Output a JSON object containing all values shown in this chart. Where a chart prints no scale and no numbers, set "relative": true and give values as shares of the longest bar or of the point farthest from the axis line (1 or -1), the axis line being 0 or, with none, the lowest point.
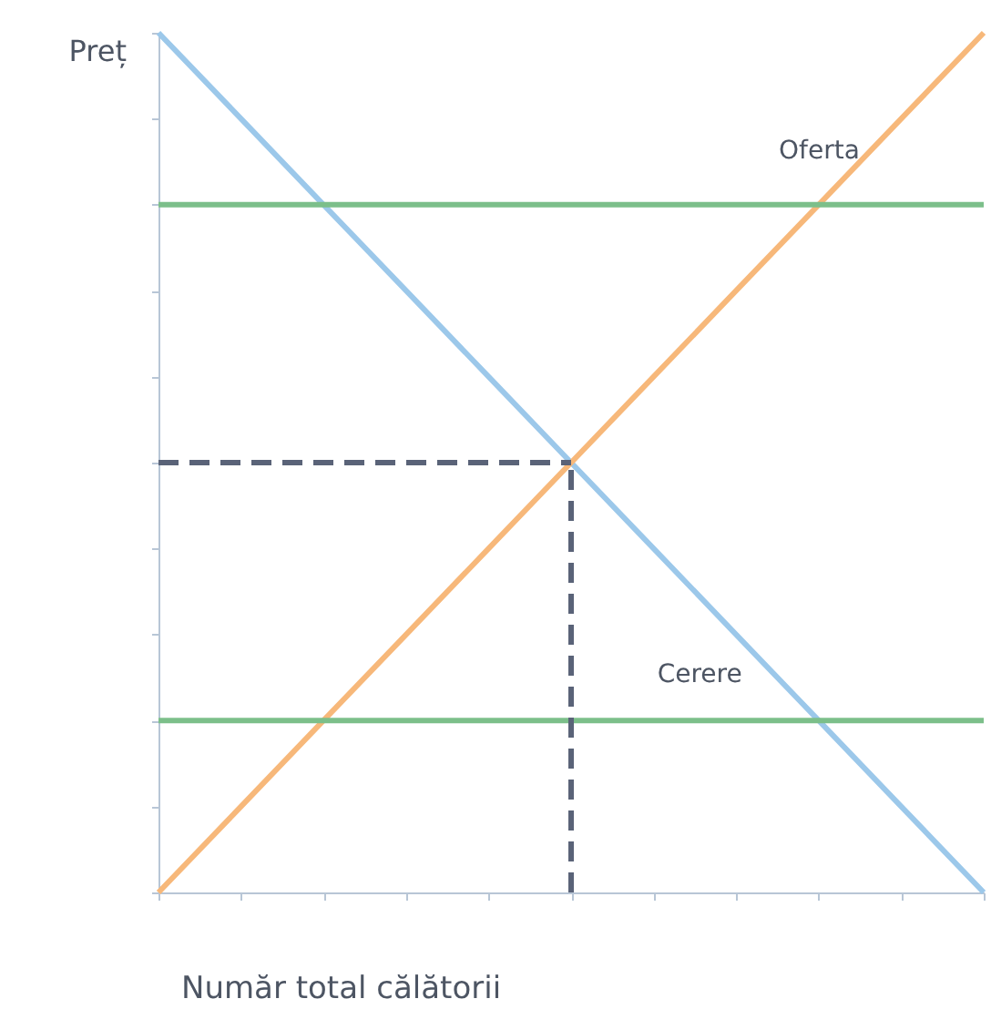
{
  "chart_data": {
    "type": "line",
    "relative": true,
    "xlabel": "Număr total călătorii",
    "ylabel": "Preț",
    "categories": [
      null,
      null,
      null,
      null,
      null,
      null,
      null,
      null,
      null,
      null,
      null
    ],
    "tick_labels": false,
    "grid": false,
    "legend": false,
    "marker": "none",
    "line_style": "solid",
    "series": [
      {
        "name": "Cerere",
        "color": "#9cc8ea",
        "values": [
          1,
          0.9,
          0.8,
          0.7,
          0.6,
          0.5,
          0.4,
          0.3,
          0.2,
          0.1,
          0
        ]
      },
      {
        "name": "Oferta",
        "color": "#f7b87a",
        "values": [
          0,
          0.1,
          0.2,
          0.3,
          0.4,
          0.5,
          0.6,
          0.7,
          0.8,
          0.9,
          1
        ]
      },
      {
        "color": "#7cbf8a",
        "values": [
          0.8,
          0.8,
          0.8,
          0.8,
          0.8,
          0.8,
          0.8,
          0.8,
          0.8,
          0.8,
          0.8
        ]
      },
      {
        "color": "#7cbf8a",
        "values": [
          0.2,
          0.2,
          0.2,
          0.2,
          0.2,
          0.2,
          0.2,
          0.2,
          0.2,
          0.2,
          0.2
        ]
      },
      {
        "color": "#5a6378",
        "line_style": "dashed",
        "values": [
          0.5,
          0.5,
          0.5,
          0.5,
          0.5,
          0.5,
          null,
          null,
          null,
          null,
          null
        ]
      }
    ]
  }
}
